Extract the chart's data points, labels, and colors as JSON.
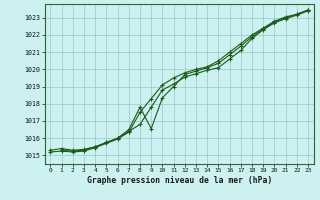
{
  "title": "Graphe pression niveau de la mer (hPa)",
  "background_color": "#cdf0f0",
  "grid_color": "#9fcfcf",
  "line_color": "#1a5c1a",
  "xlim": [
    -0.5,
    23.5
  ],
  "ylim": [
    1014.5,
    1023.8
  ],
  "yticks": [
    1015,
    1016,
    1017,
    1018,
    1019,
    1020,
    1021,
    1022,
    1023
  ],
  "xticks": [
    0,
    1,
    2,
    3,
    4,
    5,
    6,
    7,
    8,
    9,
    10,
    11,
    12,
    13,
    14,
    15,
    16,
    17,
    18,
    19,
    20,
    21,
    22,
    23
  ],
  "series1_x": [
    0,
    1,
    2,
    3,
    4,
    5,
    6,
    7,
    8,
    9,
    10,
    11,
    12,
    13,
    14,
    15,
    16,
    17,
    18,
    19,
    20,
    21,
    22,
    23
  ],
  "series1_y": [
    1015.3,
    1015.4,
    1015.3,
    1015.35,
    1015.5,
    1015.75,
    1016.0,
    1016.4,
    1016.8,
    1017.8,
    1018.8,
    1019.15,
    1019.55,
    1019.75,
    1019.95,
    1020.1,
    1020.6,
    1021.1,
    1021.8,
    1022.3,
    1022.7,
    1022.95,
    1023.15,
    1023.4
  ],
  "series2_x": [
    0,
    1,
    2,
    3,
    4,
    5,
    6,
    7,
    8,
    9,
    10,
    11,
    12,
    13,
    14,
    15,
    16,
    17,
    18,
    19,
    20,
    21,
    22,
    23
  ],
  "series2_y": [
    1015.2,
    1015.25,
    1015.2,
    1015.25,
    1015.45,
    1015.7,
    1015.95,
    1016.35,
    1017.5,
    1018.3,
    1019.1,
    1019.5,
    1019.8,
    1020.0,
    1020.15,
    1020.5,
    1021.0,
    1021.5,
    1022.0,
    1022.4,
    1022.8,
    1023.05,
    1023.2,
    1023.45
  ],
  "series3_x": [
    1,
    2,
    3,
    4,
    5,
    6,
    7,
    8,
    9,
    10,
    11,
    12,
    13,
    14,
    15,
    16,
    17,
    18,
    19,
    20,
    21,
    22,
    23
  ],
  "series3_y": [
    1015.3,
    1015.25,
    1015.3,
    1015.5,
    1015.75,
    1016.0,
    1016.5,
    1017.8,
    1016.55,
    1018.35,
    1019.0,
    1019.7,
    1019.9,
    1020.1,
    1020.35,
    1020.85,
    1021.35,
    1021.9,
    1022.35,
    1022.75,
    1023.0,
    1023.2,
    1023.45
  ]
}
